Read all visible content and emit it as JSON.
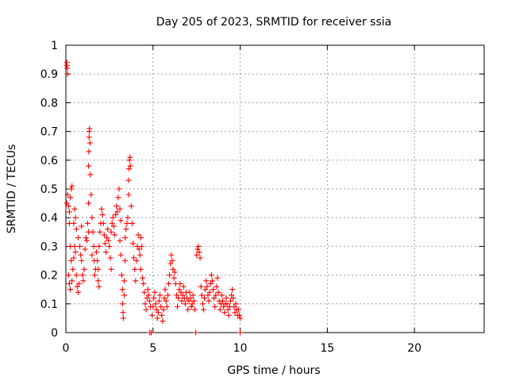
{
  "chart_data": {
    "type": "scatter",
    "title": "Day 205 of 2023, SRMTID for receiver ssia",
    "xlabel": "GPS time / hours",
    "ylabel": "SRMTID / TECUs",
    "xlim": [
      0,
      24
    ],
    "ylim": [
      0,
      1
    ],
    "xticks": [
      0,
      5,
      10,
      15,
      20
    ],
    "xtick_labels": [
      "0",
      "5",
      "10",
      "15",
      "20"
    ],
    "yticks": [
      0,
      0.1,
      0.2,
      0.3,
      0.4,
      0.5,
      0.6,
      0.7,
      0.8,
      0.9,
      1
    ],
    "ytick_labels": [
      "0",
      "0.1",
      "0.2",
      "0.3",
      "0.4",
      "0.5",
      "0.6",
      "0.7",
      "0.8",
      "0.9",
      "1"
    ],
    "grid": true,
    "marker": "+",
    "series": [
      {
        "name": "SRMTID",
        "color": "#ff0000",
        "points": [
          [
            0.05,
            0.94
          ],
          [
            0.05,
            0.93
          ],
          [
            0.08,
            0.92
          ],
          [
            0.1,
            0.9
          ],
          [
            0.05,
            0.45
          ],
          [
            0.1,
            0.48
          ],
          [
            0.15,
            0.44
          ],
          [
            0.2,
            0.42
          ],
          [
            0.25,
            0.47
          ],
          [
            0.3,
            0.5
          ],
          [
            0.35,
            0.51
          ],
          [
            0.2,
            0.38
          ],
          [
            0.25,
            0.3
          ],
          [
            0.3,
            0.25
          ],
          [
            0.15,
            0.2
          ],
          [
            0.2,
            0.17
          ],
          [
            0.25,
            0.15
          ],
          [
            0.35,
            0.18
          ],
          [
            0.4,
            0.22
          ],
          [
            0.45,
            0.26
          ],
          [
            0.5,
            0.3
          ],
          [
            0.55,
            0.28
          ],
          [
            0.6,
            0.2
          ],
          [
            0.65,
            0.16
          ],
          [
            0.7,
            0.14
          ],
          [
            0.75,
            0.17
          ],
          [
            0.5,
            0.43
          ],
          [
            0.55,
            0.4
          ],
          [
            0.6,
            0.36
          ],
          [
            0.45,
            0.38
          ],
          [
            0.8,
            0.3
          ],
          [
            0.85,
            0.27
          ],
          [
            0.9,
            0.25
          ],
          [
            0.95,
            0.2
          ],
          [
            1.0,
            0.18
          ],
          [
            1.05,
            0.22
          ],
          [
            1.1,
            0.29
          ],
          [
            1.15,
            0.33
          ],
          [
            0.9,
            0.37
          ],
          [
            0.7,
            0.33
          ],
          [
            1.2,
            0.32
          ],
          [
            1.25,
            0.38
          ],
          [
            1.3,
            0.35
          ],
          [
            1.3,
            0.45
          ],
          [
            1.3,
            0.58
          ],
          [
            1.32,
            0.63
          ],
          [
            1.33,
            0.68
          ],
          [
            1.34,
            0.7
          ],
          [
            1.36,
            0.71
          ],
          [
            1.38,
            0.66
          ],
          [
            1.4,
            0.55
          ],
          [
            1.45,
            0.48
          ],
          [
            1.5,
            0.4
          ],
          [
            1.55,
            0.35
          ],
          [
            1.6,
            0.3
          ],
          [
            1.62,
            0.25
          ],
          [
            1.65,
            0.2
          ],
          [
            1.7,
            0.22
          ],
          [
            1.5,
            0.27
          ],
          [
            1.75,
            0.28
          ],
          [
            1.8,
            0.25
          ],
          [
            1.85,
            0.22
          ],
          [
            1.85,
            0.18
          ],
          [
            1.9,
            0.16
          ],
          [
            1.9,
            0.3
          ],
          [
            1.95,
            0.35
          ],
          [
            2.0,
            0.38
          ],
          [
            2.05,
            0.43
          ],
          [
            2.1,
            0.41
          ],
          [
            2.15,
            0.38
          ],
          [
            2.2,
            0.34
          ],
          [
            2.25,
            0.31
          ],
          [
            2.3,
            0.28
          ],
          [
            2.35,
            0.33
          ],
          [
            2.4,
            0.36
          ],
          [
            2.45,
            0.32
          ],
          [
            2.5,
            0.3
          ],
          [
            2.55,
            0.26
          ],
          [
            2.6,
            0.22
          ],
          [
            2.6,
            0.35
          ],
          [
            2.65,
            0.38
          ],
          [
            2.7,
            0.4
          ],
          [
            2.75,
            0.37
          ],
          [
            2.8,
            0.34
          ],
          [
            2.85,
            0.41
          ],
          [
            2.9,
            0.44
          ],
          [
            2.95,
            0.42
          ],
          [
            3.0,
            0.47
          ],
          [
            3.05,
            0.5
          ],
          [
            3.1,
            0.43
          ],
          [
            3.15,
            0.39
          ],
          [
            3.1,
            0.32
          ],
          [
            3.15,
            0.27
          ],
          [
            3.2,
            0.2
          ],
          [
            3.25,
            0.15
          ],
          [
            3.25,
            0.1
          ],
          [
            3.28,
            0.07
          ],
          [
            3.3,
            0.05
          ],
          [
            3.35,
            0.13
          ],
          [
            3.35,
            0.18
          ],
          [
            3.4,
            0.25
          ],
          [
            3.4,
            0.33
          ],
          [
            3.45,
            0.36
          ],
          [
            3.5,
            0.38
          ],
          [
            3.55,
            0.4
          ],
          [
            3.6,
            0.48
          ],
          [
            3.6,
            0.53
          ],
          [
            3.62,
            0.57
          ],
          [
            3.65,
            0.6
          ],
          [
            3.68,
            0.61
          ],
          [
            3.7,
            0.58
          ],
          [
            3.75,
            0.44
          ],
          [
            3.8,
            0.38
          ],
          [
            3.85,
            0.31
          ],
          [
            3.9,
            0.26
          ],
          [
            3.95,
            0.22
          ],
          [
            4.0,
            0.18
          ],
          [
            4.05,
            0.25
          ],
          [
            4.1,
            0.3
          ],
          [
            4.15,
            0.34
          ],
          [
            4.2,
            0.29
          ],
          [
            4.25,
            0.27
          ],
          [
            4.3,
            0.33
          ],
          [
            4.35,
            0.3
          ],
          [
            4.3,
            0.22
          ],
          [
            4.4,
            0.19
          ],
          [
            4.45,
            0.17
          ],
          [
            4.5,
            0.14
          ],
          [
            4.55,
            0.1
          ],
          [
            4.6,
            0.08
          ],
          [
            4.65,
            0.12
          ],
          [
            4.7,
            0.15
          ],
          [
            4.75,
            0.13
          ],
          [
            4.8,
            0.11
          ],
          [
            4.85,
            0.09
          ],
          [
            4.82,
            0.0
          ],
          [
            4.9,
            0.0
          ],
          [
            4.95,
            0.06
          ],
          [
            5.0,
            0.09
          ],
          [
            5.05,
            0.12
          ],
          [
            5.1,
            0.14
          ],
          [
            5.15,
            0.1
          ],
          [
            5.2,
            0.08
          ],
          [
            5.25,
            0.05
          ],
          [
            5.3,
            0.07
          ],
          [
            5.35,
            0.11
          ],
          [
            5.4,
            0.13
          ],
          [
            5.45,
            0.09
          ],
          [
            5.5,
            0.06
          ],
          [
            5.55,
            0.04
          ],
          [
            5.6,
            0.08
          ],
          [
            5.65,
            0.12
          ],
          [
            5.7,
            0.15
          ],
          [
            5.75,
            0.11
          ],
          [
            5.8,
            0.09
          ],
          [
            5.85,
            0.13
          ],
          [
            5.9,
            0.17
          ],
          [
            5.95,
            0.2
          ],
          [
            6.0,
            0.24
          ],
          [
            6.05,
            0.27
          ],
          [
            6.1,
            0.25
          ],
          [
            6.15,
            0.22
          ],
          [
            6.2,
            0.19
          ],
          [
            6.25,
            0.21
          ],
          [
            6.3,
            0.17
          ],
          [
            6.35,
            0.13
          ],
          [
            6.4,
            0.09
          ],
          [
            6.45,
            0.12
          ],
          [
            6.5,
            0.15
          ],
          [
            6.55,
            0.17
          ],
          [
            6.6,
            0.14
          ],
          [
            6.65,
            0.11
          ],
          [
            6.7,
            0.13
          ],
          [
            6.75,
            0.16
          ],
          [
            6.8,
            0.12
          ],
          [
            6.85,
            0.1
          ],
          [
            6.9,
            0.14
          ],
          [
            6.95,
            0.12
          ],
          [
            7.0,
            0.08
          ],
          [
            7.05,
            0.11
          ],
          [
            7.1,
            0.14
          ],
          [
            7.15,
            0.12
          ],
          [
            7.2,
            0.09
          ],
          [
            7.25,
            0.1
          ],
          [
            7.3,
            0.13
          ],
          [
            7.35,
            0.11
          ],
          [
            7.4,
            0.08
          ],
          [
            7.45,
            0.0
          ],
          [
            7.5,
            0.27
          ],
          [
            7.55,
            0.29
          ],
          [
            7.6,
            0.3
          ],
          [
            7.65,
            0.28
          ],
          [
            7.7,
            0.26
          ],
          [
            7.75,
            0.16
          ],
          [
            7.8,
            0.13
          ],
          [
            7.85,
            0.1
          ],
          [
            7.9,
            0.08
          ],
          [
            7.95,
            0.12
          ],
          [
            8.0,
            0.15
          ],
          [
            8.05,
            0.18
          ],
          [
            8.1,
            0.16
          ],
          [
            8.15,
            0.13
          ],
          [
            8.2,
            0.11
          ],
          [
            8.25,
            0.14
          ],
          [
            8.3,
            0.17
          ],
          [
            8.35,
            0.2
          ],
          [
            8.4,
            0.18
          ],
          [
            8.45,
            0.15
          ],
          [
            8.5,
            0.12
          ],
          [
            8.55,
            0.09
          ],
          [
            8.6,
            0.13
          ],
          [
            8.65,
            0.16
          ],
          [
            8.7,
            0.19
          ],
          [
            8.75,
            0.14
          ],
          [
            8.8,
            0.11
          ],
          [
            8.85,
            0.08
          ],
          [
            8.9,
            0.1
          ],
          [
            8.95,
            0.13
          ],
          [
            9.0,
            0.11
          ],
          [
            9.05,
            0.09
          ],
          [
            9.1,
            0.07
          ],
          [
            9.15,
            0.1
          ],
          [
            9.2,
            0.12
          ],
          [
            9.25,
            0.1
          ],
          [
            9.3,
            0.08
          ],
          [
            9.35,
            0.06
          ],
          [
            9.4,
            0.09
          ],
          [
            9.45,
            0.11
          ],
          [
            9.5,
            0.13
          ],
          [
            9.55,
            0.15
          ],
          [
            9.6,
            0.12
          ],
          [
            9.65,
            0.09
          ],
          [
            9.7,
            0.07
          ],
          [
            9.75,
            0.1
          ],
          [
            9.8,
            0.08
          ],
          [
            9.85,
            0.06
          ],
          [
            9.9,
            0.08
          ],
          [
            9.95,
            0.06
          ],
          [
            10.0,
            0.05
          ],
          [
            10.0,
            0.0
          ]
        ]
      }
    ]
  }
}
